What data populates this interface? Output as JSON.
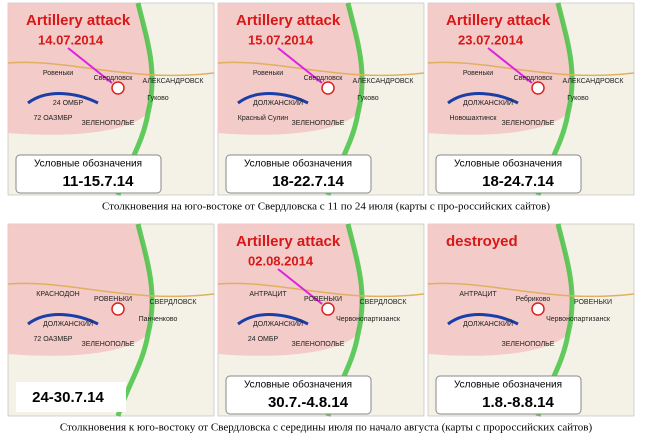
{
  "panels": [
    {
      "title": "Artillery attack",
      "date": "14.07.2014",
      "legend": "Условные обозначения",
      "range": "11-15.7.14",
      "places": [
        "Ровеньки",
        "Свердловск",
        "АЛЕКСАНДРОВСК",
        "Гуково",
        "ЗЕЛЕНОПОЛЬЕ",
        "24 ОМБР",
        "72 ОАЗМБР"
      ]
    },
    {
      "title": "Artillery attack",
      "date": "15.07.2014",
      "legend": "Условные обозначения",
      "range": "18-22.7.14",
      "places": [
        "Ровеньки",
        "Свердловск",
        "АЛЕКСАНДРОВСК",
        "Гуково",
        "ЗЕЛЕНОПОЛЬЕ",
        "ДОЛЖАНСКИЙ",
        "Красный Сулин"
      ]
    },
    {
      "title": "Artillery attack",
      "date": "23.07.2014",
      "legend": "Условные обозначения",
      "range": "18-24.7.14",
      "places": [
        "Ровеньки",
        "Свердловск",
        "АЛЕКСАНДРОВСК",
        "Гуково",
        "ЗЕЛЕНОПОЛЬЕ",
        "ДОЛЖАНСКИЙ",
        "Новошахтинск"
      ]
    },
    {
      "range": "24-30.7.14",
      "places": [
        "КРАСНОДОН",
        "РОВЕНЬКИ",
        "СВЕРДЛОВСК",
        "Панченково",
        "ЗЕЛЕНОПОЛЬЕ",
        "ДОЛЖАНСКИЙ",
        "72 ОАЗМБР"
      ]
    },
    {
      "title": "Artillery attack",
      "date": "02.08.2014",
      "legend": "Условные обозначения",
      "range": "30.7.-4.8.14",
      "places": [
        "АНТРАЦИТ",
        "РОВЕНЬКИ",
        "СВЕРДЛОВСК",
        "Червонопартизанск",
        "ЗЕЛЕНОПОЛЬЕ",
        "ДОЛЖАНСКИЙ",
        "24 ОМБР"
      ]
    },
    {
      "title": "destroyed",
      "legend": "Условные обозначения",
      "range": "1.8.-8.8.14",
      "places": [
        "АНТРАЦИТ",
        "Ребриково",
        "РОВЕНЬКИ",
        "Червонопартизанск",
        "ЗЕЛЕНОПОЛЬЕ",
        "ДОЛЖАНСКИЙ"
      ]
    }
  ],
  "captions": [
    "Столкновения на юго-востоке от Свердловска с 11 по 24 июля (карты с про-российских сайтов)",
    "Столкновения к юго-востоку от Свердловска с середины июля по начало августа (карты с пророссийских сайтов)"
  ]
}
